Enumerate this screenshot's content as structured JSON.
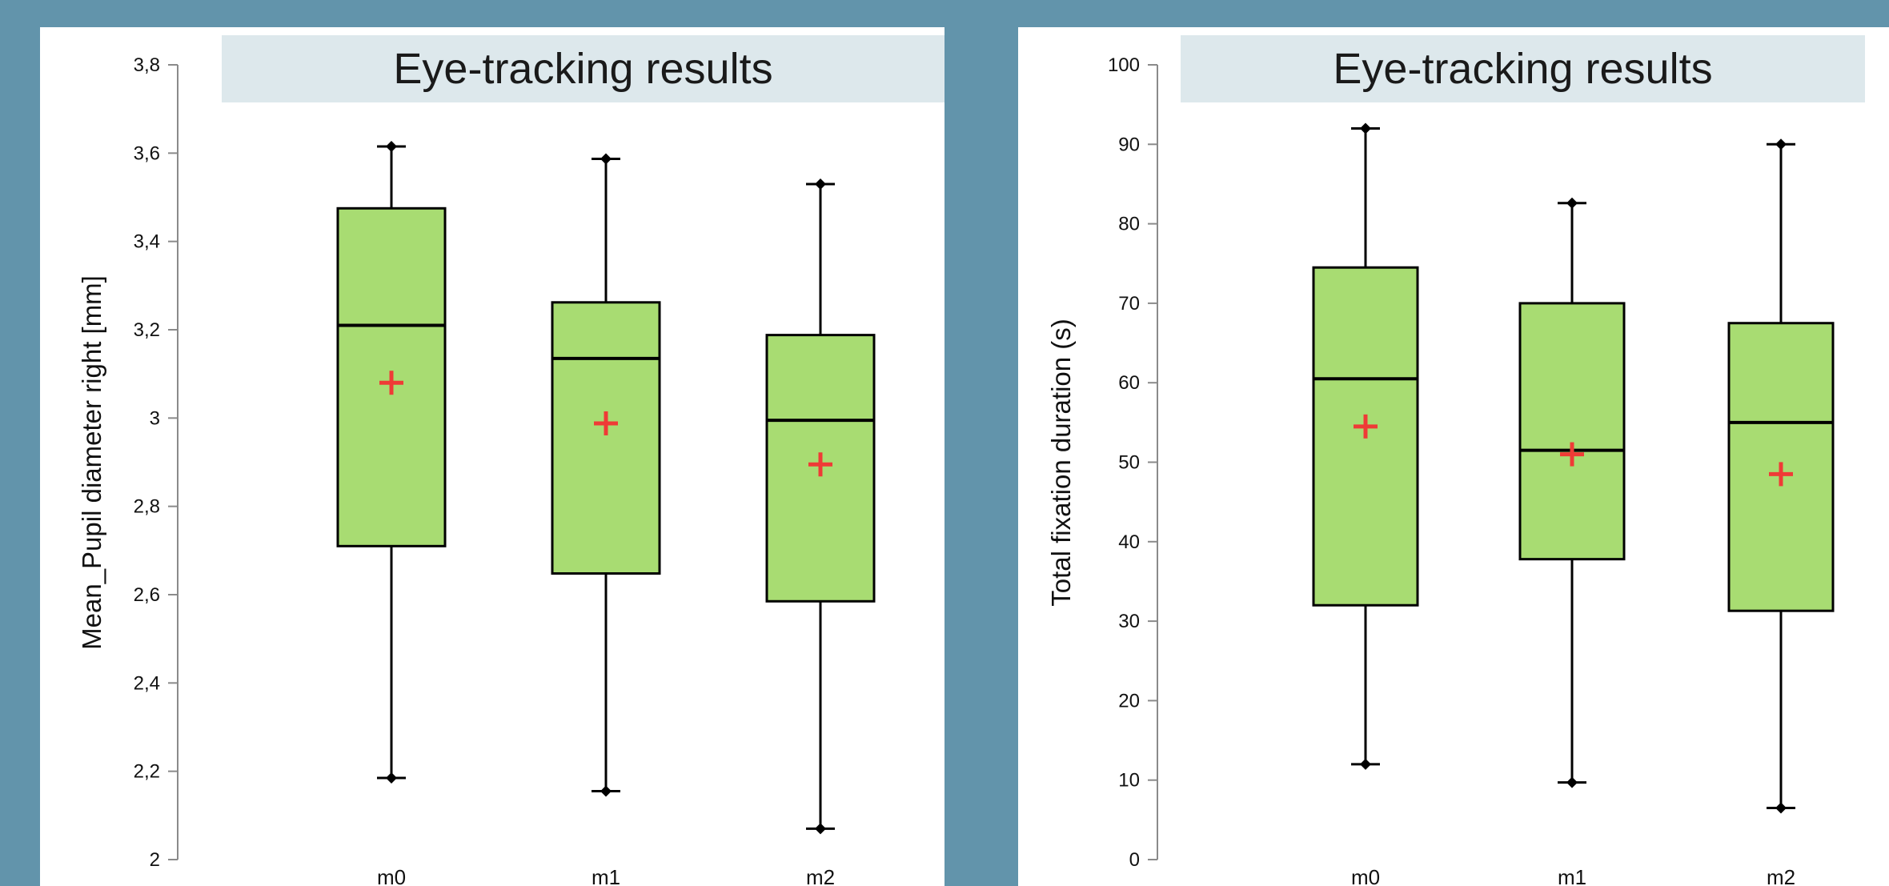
{
  "chart_data": [
    {
      "type": "box",
      "title": "Eye-tracking results",
      "ylabel": "Mean_Pupil diameter right [mm]",
      "xlabel": "",
      "ylim": [
        2,
        3.8
      ],
      "yticks": [
        2,
        2.2,
        2.4,
        2.6,
        2.8,
        3,
        3.2,
        3.4,
        3.6,
        3.8
      ],
      "ytick_labels": [
        "2",
        "2,2",
        "2,4",
        "2,6",
        "2,8",
        "3",
        "3,2",
        "3,4",
        "3,6",
        "3,8"
      ],
      "categories": [
        "m0",
        "m1",
        "m2"
      ],
      "boxes": [
        {
          "name": "m0",
          "min": 2.185,
          "q1": 2.71,
          "median": 3.21,
          "q3": 3.475,
          "max": 3.615,
          "mean": 3.08
        },
        {
          "name": "m1",
          "min": 2.155,
          "q1": 2.648,
          "median": 3.135,
          "q3": 3.262,
          "max": 3.587,
          "mean": 2.988
        },
        {
          "name": "m2",
          "min": 2.07,
          "q1": 2.585,
          "median": 2.995,
          "q3": 3.188,
          "max": 3.53,
          "mean": 2.895
        }
      ],
      "grid": false,
      "colors": {
        "box_fill": "#a8dc72",
        "box_stroke": "#000000",
        "mean_marker": "#ef3b36"
      }
    },
    {
      "type": "box",
      "title": "Eye-tracking results",
      "ylabel": "Total fixation duration (s)",
      "xlabel": "",
      "ylim": [
        0,
        100
      ],
      "yticks": [
        0,
        10,
        20,
        30,
        40,
        50,
        60,
        70,
        80,
        90,
        100
      ],
      "ytick_labels": [
        "0",
        "10",
        "20",
        "30",
        "40",
        "50",
        "60",
        "70",
        "80",
        "90",
        "100"
      ],
      "categories": [
        "m0",
        "m1",
        "m2"
      ],
      "boxes": [
        {
          "name": "m0",
          "min": 12,
          "q1": 32,
          "median": 60.5,
          "q3": 74.5,
          "max": 92,
          "mean": 54.5
        },
        {
          "name": "m1",
          "min": 9.7,
          "q1": 37.8,
          "median": 51.5,
          "q3": 70,
          "max": 82.6,
          "mean": 51
        },
        {
          "name": "m2",
          "min": 6.5,
          "q1": 31.3,
          "median": 55,
          "q3": 67.5,
          "max": 90,
          "mean": 48.5
        }
      ],
      "grid": false,
      "colors": {
        "box_fill": "#a8dc72",
        "box_stroke": "#000000",
        "mean_marker": "#ef3b36"
      }
    }
  ]
}
